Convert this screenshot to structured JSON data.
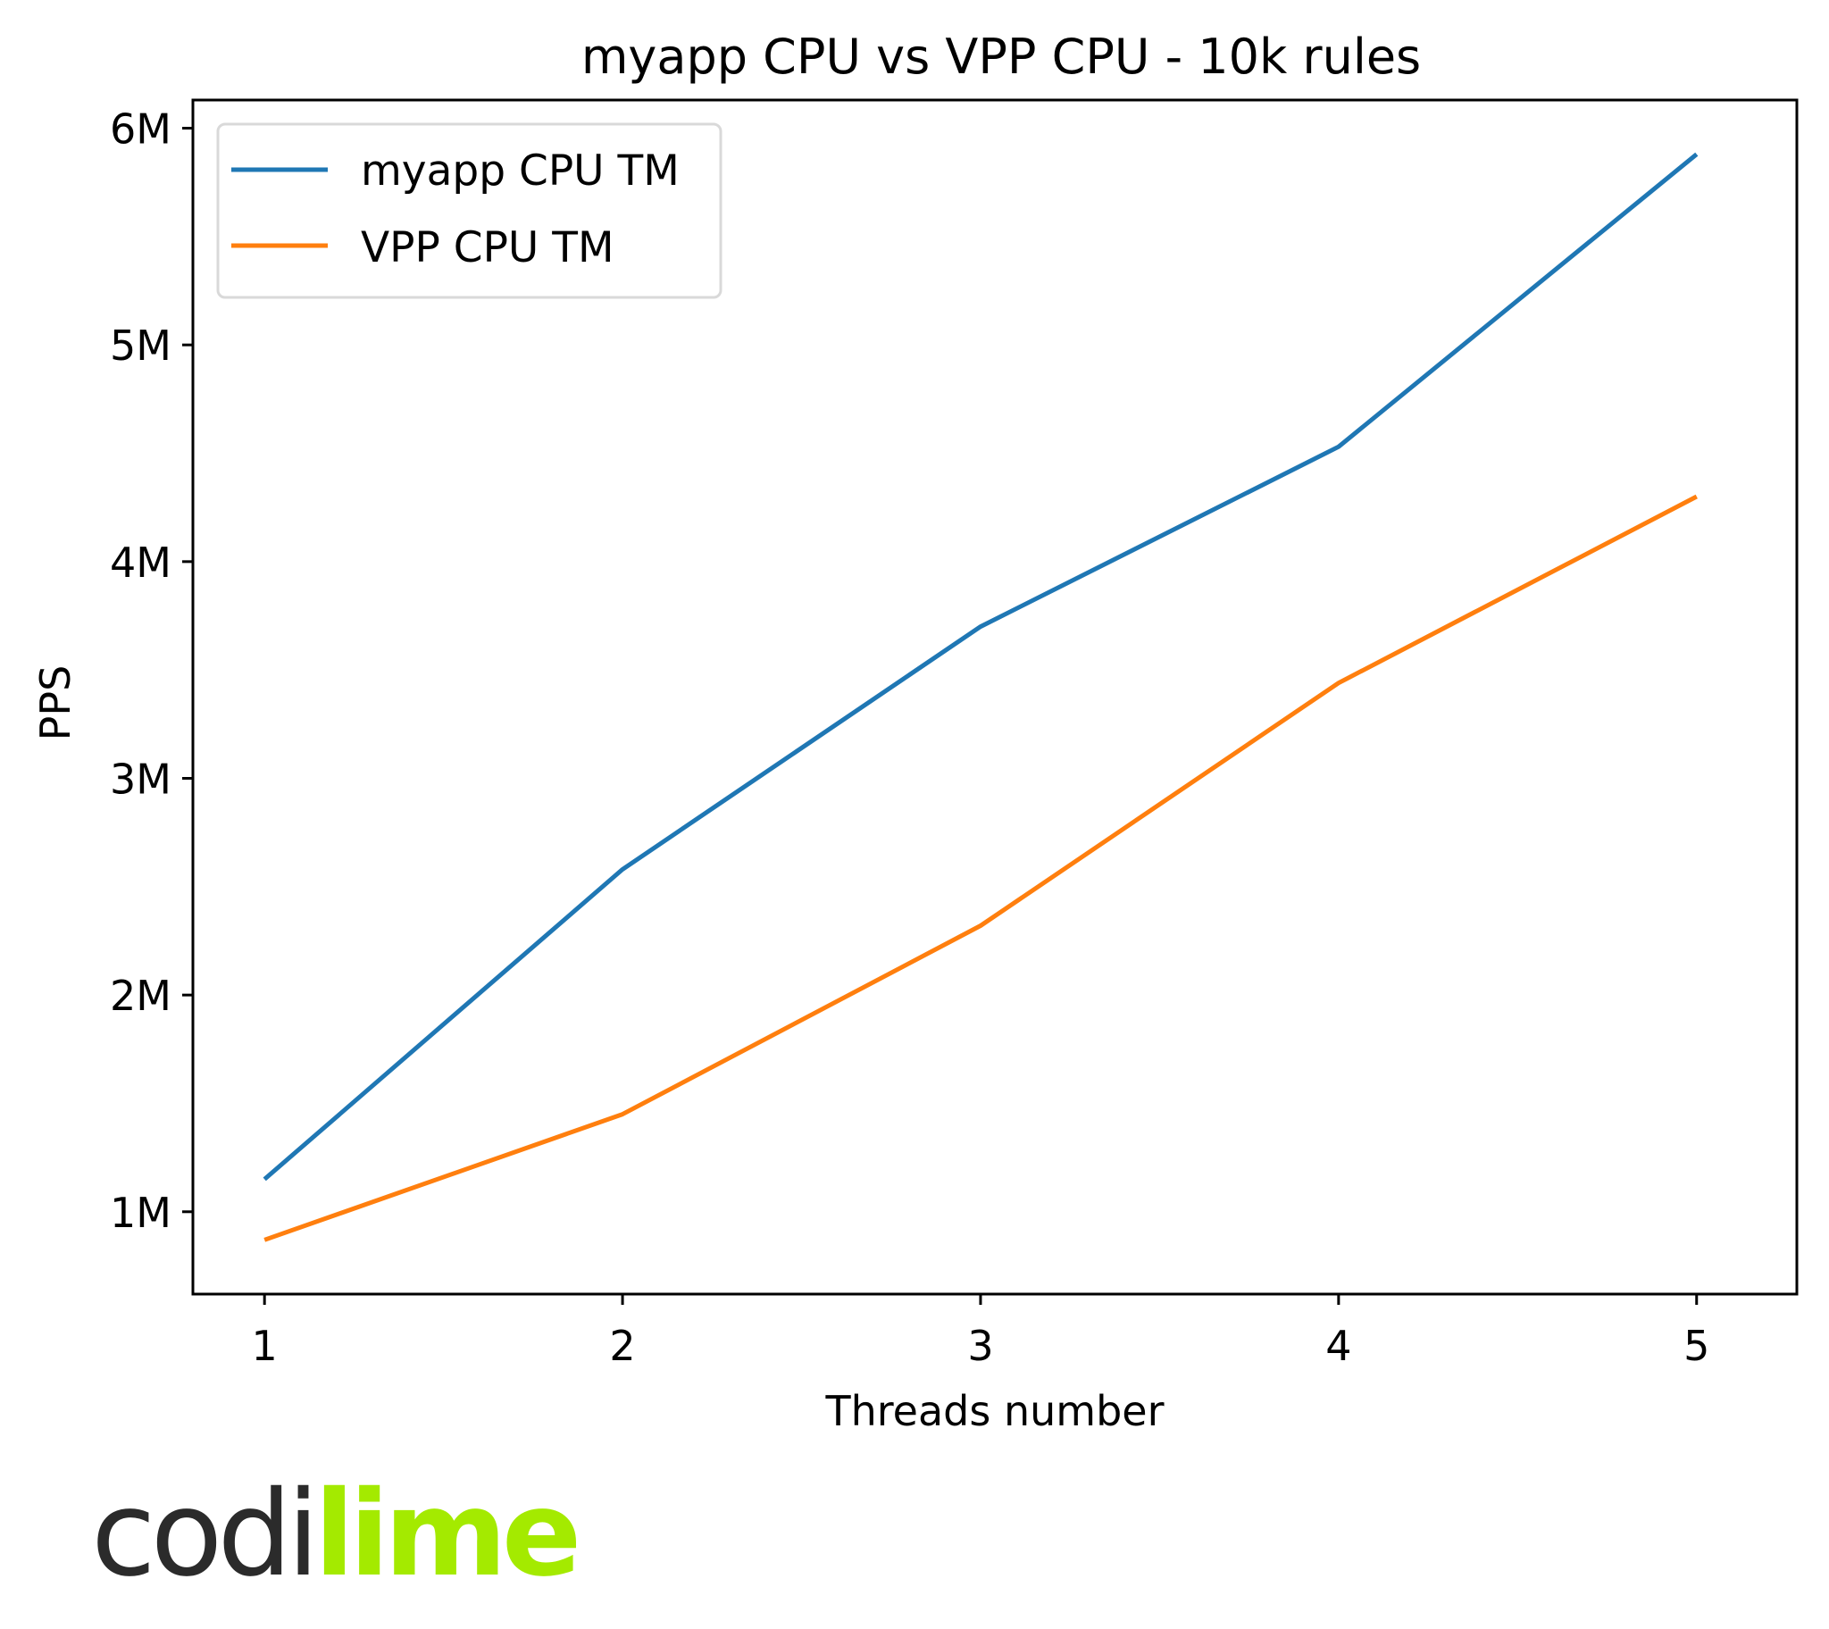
{
  "chart_data": {
    "type": "line",
    "title": "myapp CPU vs VPP CPU - 10k rules",
    "xlabel": "Threads number",
    "ylabel": "PPS",
    "x": [
      1,
      2,
      3,
      4,
      5
    ],
    "series": [
      {
        "name": "myapp CPU TM",
        "color": "#1f77b4",
        "values": [
          1150000,
          2580000,
          3700000,
          4530000,
          5880000
        ]
      },
      {
        "name": "VPP CPU TM",
        "color": "#ff7f0e",
        "values": [
          870000,
          1450000,
          2320000,
          3440000,
          4300000
        ]
      }
    ],
    "xticks": [
      "1",
      "2",
      "3",
      "4",
      "5"
    ],
    "yticks": [
      {
        "value": 1000000,
        "label": "1M"
      },
      {
        "value": 2000000,
        "label": "2M"
      },
      {
        "value": 3000000,
        "label": "3M"
      },
      {
        "value": 4000000,
        "label": "4M"
      },
      {
        "value": 5000000,
        "label": "5M"
      },
      {
        "value": 6000000,
        "label": "6M"
      }
    ],
    "xlim": [
      0.8,
      5.28
    ],
    "ylim": [
      620000,
      6130000
    ],
    "grid": false,
    "legend_position": "upper left"
  },
  "logo": {
    "part1": "codi",
    "part2": "lime",
    "color_dark": "#2b2b2b",
    "color_accent": "#a4ea00"
  }
}
